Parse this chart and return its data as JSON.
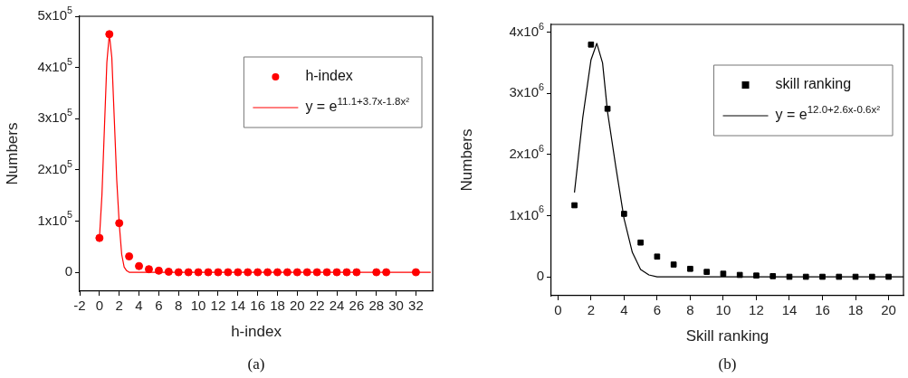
{
  "chart_data": [
    {
      "type": "scatter",
      "xlabel": "h-index",
      "ylabel": "Numbers",
      "xlim": [
        -2,
        33.7
      ],
      "ylim": [
        -37000,
        500000
      ],
      "xticks": [
        -2,
        0,
        2,
        4,
        6,
        8,
        10,
        12,
        14,
        16,
        18,
        20,
        22,
        24,
        26,
        28,
        30,
        32
      ],
      "yticks": [
        {
          "value": 0,
          "label": "0"
        },
        {
          "value": 100000,
          "label": "1x10$^{5}$"
        },
        {
          "value": 200000,
          "label": "2x10$^{5}$"
        },
        {
          "value": 300000,
          "label": "3x10$^{5}$"
        },
        {
          "value": 400000,
          "label": "4x10$^{5}$"
        },
        {
          "value": 500000,
          "label": "5x10$^{5}$"
        }
      ],
      "grid": false,
      "legend": "top right",
      "annotations": [
        "(a)"
      ],
      "series": [
        {
          "name": "h-index",
          "marker": "circle",
          "color": "#ff0000",
          "x": [
            0,
            1,
            2,
            3,
            4,
            5,
            6,
            7,
            8,
            9,
            10,
            11,
            12,
            13,
            14,
            15,
            16,
            17,
            18,
            19,
            20,
            21,
            22,
            23,
            24,
            25,
            26,
            28,
            29,
            32
          ],
          "values": [
            67000,
            465000,
            96000,
            31000,
            12000,
            6000,
            3000,
            1000,
            0,
            0,
            0,
            0,
            0,
            0,
            0,
            0,
            0,
            0,
            0,
            0,
            0,
            0,
            0,
            0,
            0,
            0,
            0,
            0,
            0,
            0
          ]
        },
        {
          "name": "y = e$^{11.1+3.7x-1.8x²}$",
          "type": "line",
          "marker": "none",
          "color": "#ff0000",
          "x": [
            0,
            0.25,
            0.5,
            0.75,
            1,
            1.25,
            1.5,
            1.75,
            2,
            2.25,
            2.5,
            2.75,
            3,
            4,
            33.5
          ],
          "values": [
            67000,
            150000,
            280000,
            410000,
            465000,
            420000,
            300000,
            180000,
            95000,
            35000,
            10000,
            3000,
            0,
            0,
            0
          ]
        }
      ]
    },
    {
      "type": "scatter",
      "xlabel": "Skill ranking",
      "ylabel": "Numbers",
      "xlim": [
        -0.4,
        20.9
      ],
      "ylim": [
        -310000,
        4130000
      ],
      "xticks": [
        0,
        2,
        4,
        6,
        8,
        10,
        12,
        14,
        16,
        18,
        20
      ],
      "yticks": [
        {
          "value": 0,
          "label": "0"
        },
        {
          "value": 1000000,
          "label": "1x10$^{6}$"
        },
        {
          "value": 2000000,
          "label": "2x10$^{6}$"
        },
        {
          "value": 3000000,
          "label": "3x10$^{6}$"
        },
        {
          "value": 4000000,
          "label": "4x10$^{6}$"
        }
      ],
      "grid": false,
      "legend": "top right",
      "annotations": [
        "(b)"
      ],
      "series": [
        {
          "name": "skill ranking",
          "marker": "square",
          "color": "#000000",
          "x": [
            1,
            2,
            3,
            4,
            5,
            6,
            7,
            8,
            9,
            10,
            11,
            12,
            13,
            14,
            15,
            16,
            17,
            18,
            19,
            20
          ],
          "values": [
            1170000,
            3800000,
            2750000,
            1030000,
            560000,
            330000,
            200000,
            130000,
            80000,
            50000,
            30000,
            20000,
            10000,
            0,
            0,
            0,
            0,
            0,
            0,
            0
          ]
        },
        {
          "name": "y = e$^{12.0+2.6x-0.6x²}$",
          "type": "line",
          "marker": "none",
          "color": "#000000",
          "x": [
            1,
            1.5,
            2,
            2.35,
            2.7,
            3,
            3.5,
            4,
            4.5,
            5,
            5.5,
            6,
            8,
            20.9
          ],
          "values": [
            1380000,
            2600000,
            3550000,
            3820000,
            3500000,
            2700000,
            1800000,
            950000,
            400000,
            120000,
            30000,
            0,
            0,
            0
          ]
        }
      ]
    }
  ]
}
